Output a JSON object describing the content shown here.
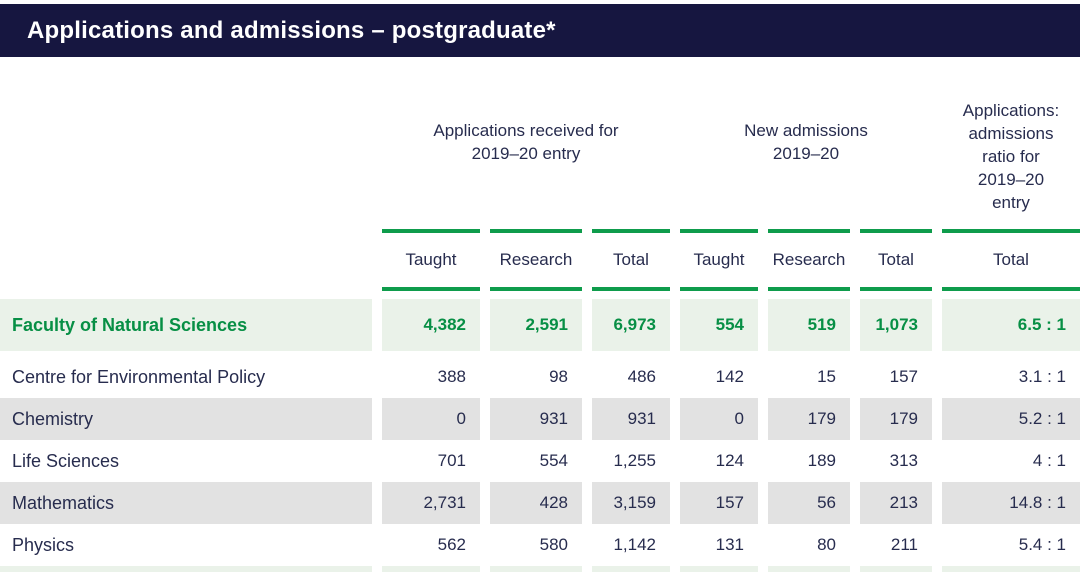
{
  "title": "Applications and admissions – postgraduate*",
  "colors": {
    "header_bar": "#161640",
    "accent_green": "#0e9c4c",
    "highlight_row_bg": "#eaf2e9",
    "striped_row_bg": "#e2e2e2",
    "body_text": "#272c4e"
  },
  "table": {
    "groups": [
      {
        "label": "Applications received for 2019–20 entry",
        "span": 3
      },
      {
        "label": "New admissions 2019–20",
        "span": 3
      },
      {
        "label": "Applications: admissions ratio for 2019–20 entry",
        "span": 1
      }
    ],
    "subheaders": [
      "Taught",
      "Research",
      "Total",
      "Taught",
      "Research",
      "Total",
      "Total"
    ],
    "rows": [
      {
        "label": "Faculty of Natural Sciences",
        "style": "highlight",
        "values": [
          "4,382",
          "2,591",
          "6,973",
          "554",
          "519",
          "1,073",
          "6.5 : 1"
        ]
      },
      {
        "label": "Centre for Environmental Policy",
        "style": "plain",
        "values": [
          "388",
          "98",
          "486",
          "142",
          "15",
          "157",
          "3.1 : 1"
        ]
      },
      {
        "label": "Chemistry",
        "style": "striped",
        "values": [
          "0",
          "931",
          "931",
          "0",
          "179",
          "179",
          "5.2 : 1"
        ]
      },
      {
        "label": "Life Sciences",
        "style": "plain",
        "values": [
          "701",
          "554",
          "1,255",
          "124",
          "189",
          "313",
          "4 : 1"
        ]
      },
      {
        "label": "Mathematics",
        "style": "striped",
        "values": [
          "2,731",
          "428",
          "3,159",
          "157",
          "56",
          "213",
          "14.8 : 1"
        ]
      },
      {
        "label": "Physics",
        "style": "plain",
        "values": [
          "562",
          "580",
          "1,142",
          "131",
          "80",
          "211",
          "5.4 : 1"
        ]
      }
    ]
  }
}
